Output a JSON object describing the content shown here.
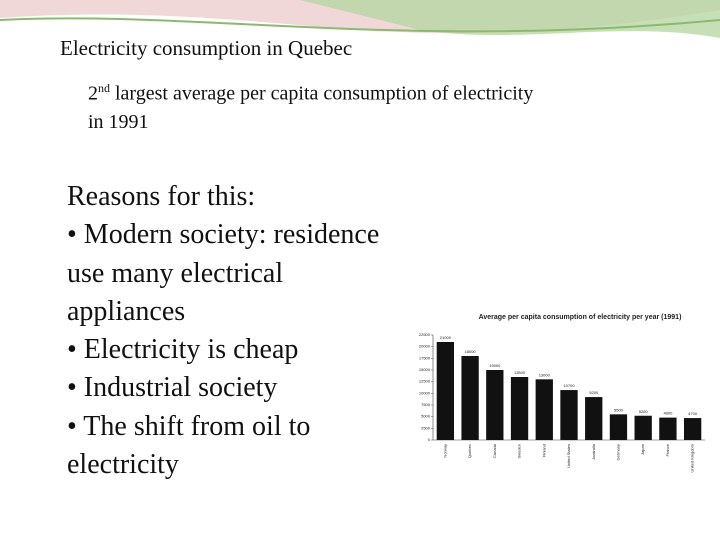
{
  "header": {
    "title": "Electricity consumption in Quebec"
  },
  "bullet": {
    "number": "2",
    "suffix": "nd",
    "text": "largest average per capita consumption of electricity",
    "continuation": "in 1991"
  },
  "body": {
    "lines": [
      "Reasons for this:",
      "• Modern society: residence",
      "use many electrical",
      "appliances",
      "• Electricity is cheap",
      "• Industrial society",
      "• The shift from oil to",
      "electricity"
    ]
  },
  "chart_data": {
    "type": "bar",
    "title": "Average per capita consumption of electricity per year (1991)",
    "categories": [
      "Norway",
      "Quebec",
      "Canada",
      "Sweden",
      "Finland",
      "United States",
      "Australia",
      "Germany",
      "Japan",
      "France",
      "United Kingdom"
    ],
    "values": [
      21000,
      18000,
      15000,
      13500,
      13000,
      10700,
      9200,
      5500,
      5200,
      4800,
      4700
    ],
    "color": "#111111",
    "ylim": [
      0,
      22500
    ],
    "yticks": [
      0,
      2500,
      5000,
      7500,
      10000,
      12500,
      15000,
      17500,
      20000,
      22500
    ],
    "grid": false
  }
}
